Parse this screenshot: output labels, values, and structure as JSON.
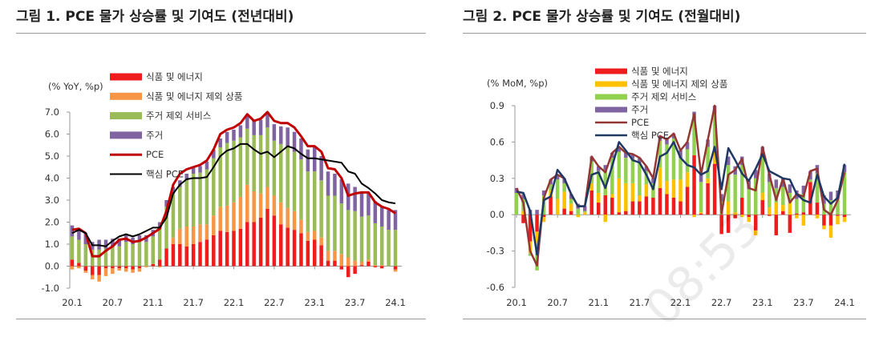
{
  "watermark": "08:53",
  "colors": {
    "food_energy": "#ee1c1c",
    "goods_ex": "#f79646",
    "goods_ex_mom": "#ffc000",
    "services_ex_housing": "#9bbb59",
    "services_ex_housing_mom": "#92d050",
    "housing": "#8064a2",
    "pce": "#c00000",
    "pce_mom": "#943634",
    "core": "#000000",
    "core_mom": "#1f3864"
  },
  "chart_data": [
    {
      "type": "bar",
      "title": "그림 1. PCE 물가 상승률 및 기여도 (전년대비)",
      "ylabel": "(% YoY, %p)",
      "ylim": [
        -1.0,
        7.0
      ],
      "yticks": [
        "7.0",
        "6.0",
        "5.0",
        "4.0",
        "3.0",
        "2.0",
        "1.0",
        "0.0",
        "-1.0"
      ],
      "ytick_values": [
        7,
        6,
        5,
        4,
        3,
        2,
        1,
        0,
        -1
      ],
      "xtick_labels": [
        "20.1",
        "20.7",
        "21.1",
        "21.7",
        "22.1",
        "22.7",
        "23.1",
        "23.7",
        "24.1"
      ],
      "x_start": "2020.1",
      "x_end": "2024.1",
      "stacked": true,
      "legend_position": "top-left",
      "series": [
        {
          "name": "식품 및 에너지",
          "kind": "bar",
          "values": [
            0.3,
            0.15,
            -0.2,
            -0.4,
            -0.4,
            -0.1,
            -0.1,
            -0.1,
            -0.1,
            -0.15,
            -0.1,
            0.0,
            0.1,
            0.3,
            0.8,
            1.0,
            1.0,
            0.9,
            1.0,
            1.1,
            1.2,
            1.4,
            1.6,
            1.55,
            1.6,
            1.7,
            2.0,
            2.0,
            2.2,
            2.6,
            2.3,
            1.9,
            1.75,
            1.65,
            1.5,
            1.15,
            1.2,
            0.95,
            0.25,
            0.25,
            -0.15,
            -0.5,
            -0.35,
            0.05,
            0.2,
            -0.05,
            -0.1,
            0.0,
            -0.15
          ]
        },
        {
          "name": "식품 및 에너지 제외 상품",
          "kind": "bar",
          "values": [
            -0.15,
            -0.1,
            -0.1,
            -0.2,
            -0.3,
            -0.35,
            -0.25,
            -0.1,
            -0.15,
            -0.15,
            -0.15,
            -0.05,
            0.0,
            -0.05,
            0.0,
            0.3,
            0.7,
            0.9,
            0.8,
            0.8,
            0.7,
            0.9,
            1.1,
            1.2,
            1.3,
            1.45,
            1.7,
            1.4,
            1.1,
            1.0,
            0.9,
            1.0,
            0.9,
            0.85,
            0.6,
            0.4,
            0.4,
            0.35,
            0.45,
            0.45,
            0.55,
            0.4,
            0.25,
            0.15,
            0.1,
            0.05,
            0.05,
            0.0,
            -0.1
          ]
        },
        {
          "name": "주거 제외 서비스",
          "kind": "bar",
          "values": [
            1.05,
            1.05,
            1.0,
            0.75,
            0.75,
            0.8,
            0.9,
            0.9,
            1.1,
            1.0,
            1.1,
            1.1,
            1.25,
            1.4,
            1.9,
            2.0,
            1.9,
            2.1,
            2.4,
            2.35,
            2.5,
            2.6,
            2.7,
            2.85,
            2.8,
            2.7,
            2.55,
            2.55,
            2.65,
            2.7,
            2.5,
            2.65,
            2.8,
            2.7,
            2.75,
            2.75,
            2.7,
            2.6,
            2.5,
            2.5,
            2.3,
            2.15,
            2.25,
            2.05,
            2.0,
            1.9,
            1.75,
            1.65,
            1.65
          ]
        },
        {
          "name": "주거",
          "kind": "bar",
          "values": [
            0.5,
            0.5,
            0.5,
            0.35,
            0.45,
            0.4,
            0.35,
            0.35,
            0.3,
            0.3,
            0.3,
            0.3,
            0.3,
            0.3,
            0.3,
            0.3,
            0.3,
            0.3,
            0.3,
            0.3,
            0.35,
            0.4,
            0.4,
            0.5,
            0.5,
            0.55,
            0.65,
            0.7,
            0.7,
            0.7,
            0.75,
            0.8,
            0.85,
            0.9,
            0.95,
            1.0,
            1.1,
            1.1,
            1.1,
            1.0,
            1.1,
            1.2,
            1.1,
            1.1,
            1.0,
            1.0,
            0.9,
            0.9,
            0.9
          ]
        },
        {
          "name": "PCE",
          "kind": "line",
          "values": [
            1.65,
            1.7,
            1.5,
            0.45,
            0.45,
            0.7,
            0.9,
            1.2,
            1.25,
            1.1,
            1.15,
            1.3,
            1.5,
            1.7,
            2.5,
            3.7,
            4.2,
            4.4,
            4.5,
            4.6,
            4.8,
            5.3,
            6.0,
            6.2,
            6.3,
            6.5,
            6.9,
            6.6,
            6.7,
            7.0,
            6.6,
            6.5,
            6.5,
            6.3,
            5.9,
            5.45,
            5.45,
            5.2,
            4.45,
            4.4,
            4.0,
            3.2,
            3.3,
            3.35,
            3.35,
            2.9,
            2.7,
            2.6,
            2.4
          ]
        },
        {
          "name": "핵심 PCE",
          "kind": "line",
          "values": [
            1.5,
            1.65,
            1.5,
            0.95,
            0.95,
            0.9,
            1.15,
            1.35,
            1.45,
            1.35,
            1.45,
            1.6,
            1.75,
            1.75,
            2.2,
            3.3,
            3.7,
            3.95,
            4.0,
            4.0,
            4.05,
            4.5,
            5.0,
            5.25,
            5.35,
            5.55,
            5.55,
            5.3,
            5.1,
            5.2,
            4.95,
            5.2,
            5.45,
            5.35,
            5.1,
            4.9,
            4.9,
            4.85,
            4.8,
            4.75,
            4.7,
            4.3,
            4.2,
            3.75,
            3.55,
            3.3,
            3.0,
            2.9,
            2.85
          ]
        }
      ]
    },
    {
      "type": "bar",
      "title": "그림 2. PCE 물가 상승률 및 기여도 (전월대비)",
      "ylabel": "(% MoM, %p)",
      "ylim": [
        -0.6,
        0.9
      ],
      "yticks": [
        "0.9",
        "0.6",
        "0.3",
        "0.0",
        "-0.3",
        "-0.6"
      ],
      "ytick_values": [
        0.9,
        0.6,
        0.3,
        0,
        -0.3,
        -0.6
      ],
      "xtick_labels": [
        "20.1",
        "20.7",
        "21.1",
        "21.7",
        "22.1",
        "22.7",
        "23.1",
        "23.7",
        "24.1"
      ],
      "x_start": "2020.1",
      "x_end": "2024.1",
      "stacked": true,
      "legend_position": "top-left",
      "series": [
        {
          "name": "식품 및 에너지",
          "kind": "bar",
          "values": [
            0,
            -0.07,
            -0.22,
            -0.14,
            -0.02,
            0.15,
            0,
            0.05,
            0.03,
            0,
            0,
            0.2,
            0.1,
            0.16,
            0.14,
            0.02,
            0.03,
            0.11,
            0.11,
            0.15,
            0.14,
            0.22,
            0.17,
            0.14,
            0.11,
            0.23,
            0.49,
            0.01,
            0.26,
            0.42,
            -0.16,
            -0.15,
            -0.03,
            0.14,
            -0.02,
            -0.13,
            0.12,
            -0.01,
            -0.17,
            0.03,
            -0.15,
            0.01,
            0.02,
            0.27,
            0.1,
            -0.09,
            -0.09,
            -0.01,
            -0.02
          ]
        },
        {
          "name": "식품 및 에너지 제외 상품",
          "kind": "bar",
          "values": [
            0,
            0.03,
            -0.1,
            -0.1,
            -0.04,
            0.05,
            0.13,
            0.14,
            0.06,
            -0.02,
            0.02,
            0.06,
            0.08,
            -0.06,
            0.03,
            0.28,
            0.23,
            0.15,
            0.05,
            0.1,
            0.0,
            0.17,
            0.11,
            0.15,
            0.18,
            0.12,
            -0.02,
            0.01,
            0.04,
            0.1,
            0.0,
            0.11,
            0.02,
            -0.02,
            -0.04,
            -0.04,
            0.06,
            0.06,
            0.1,
            0.05,
            0.1,
            -0.03,
            -0.09,
            0.0,
            -0.03,
            -0.03,
            -0.1,
            -0.07,
            -0.04
          ]
        },
        {
          "name": "주거 제외 서비스",
          "kind": "bar",
          "values": [
            0.18,
            0.1,
            -0.02,
            -0.22,
            0.16,
            0.05,
            0.16,
            0.07,
            0.04,
            0.05,
            0.01,
            0.18,
            0.18,
            0.21,
            0.3,
            0.22,
            0.21,
            0.2,
            0.27,
            0.11,
            0.12,
            0.22,
            0.3,
            0.34,
            0.18,
            0.19,
            0.3,
            0.25,
            0.26,
            0.32,
            0.11,
            0.3,
            0.31,
            0.27,
            0.21,
            0.3,
            0.31,
            0.21,
            0.12,
            0.15,
            0.08,
            0.12,
            0.15,
            0.02,
            0.24,
            0.09,
            0.12,
            0.13,
            0.35
          ]
        },
        {
          "name": "주거",
          "kind": "bar",
          "values": [
            0.04,
            0.04,
            0.04,
            0.04,
            0.04,
            0.04,
            0.04,
            0.04,
            0.04,
            0.04,
            0.04,
            0.04,
            0.04,
            0.04,
            0.04,
            0.04,
            0.04,
            0.04,
            0.04,
            0.04,
            0.04,
            0.04,
            0.04,
            0.04,
            0.06,
            0.06,
            0.06,
            0.06,
            0.06,
            0.06,
            0.06,
            0.07,
            0.07,
            0.07,
            0.07,
            0.07,
            0.07,
            0.07,
            0.07,
            0.07,
            0.07,
            0.07,
            0.07,
            0.07,
            0.07,
            0.07,
            0.07,
            0.07,
            0.06
          ]
        },
        {
          "name": "PCE",
          "kind": "line",
          "values": [
            0.22,
            0.1,
            -0.3,
            -0.42,
            0.14,
            0.29,
            0.33,
            0.3,
            0.17,
            0.07,
            0.07,
            0.48,
            0.4,
            0.35,
            0.51,
            0.56,
            0.51,
            0.5,
            0.47,
            0.4,
            0.3,
            0.65,
            0.62,
            0.67,
            0.53,
            0.6,
            0.83,
            0.33,
            0.62,
            0.9,
            0.01,
            0.33,
            0.37,
            0.46,
            0.22,
            0.2,
            0.56,
            0.33,
            0.12,
            0.3,
            0.1,
            0.17,
            0.15,
            0.36,
            0.38,
            0.04,
            0.0,
            0.12,
            0.35
          ]
        },
        {
          "name": "핵심 PCE",
          "kind": "line",
          "values": [
            0.19,
            0.18,
            0.03,
            -0.33,
            0.12,
            0.15,
            0.37,
            0.3,
            0.17,
            0.07,
            0.07,
            0.33,
            0.35,
            0.22,
            0.4,
            0.6,
            0.53,
            0.45,
            0.43,
            0.33,
            0.21,
            0.48,
            0.51,
            0.6,
            0.47,
            0.41,
            0.39,
            0.33,
            0.36,
            0.56,
            0.21,
            0.55,
            0.45,
            0.34,
            0.28,
            0.38,
            0.5,
            0.36,
            0.33,
            0.3,
            0.29,
            0.17,
            0.12,
            0.1,
            0.33,
            0.15,
            0.09,
            0.14,
            0.42
          ]
        }
      ]
    }
  ]
}
